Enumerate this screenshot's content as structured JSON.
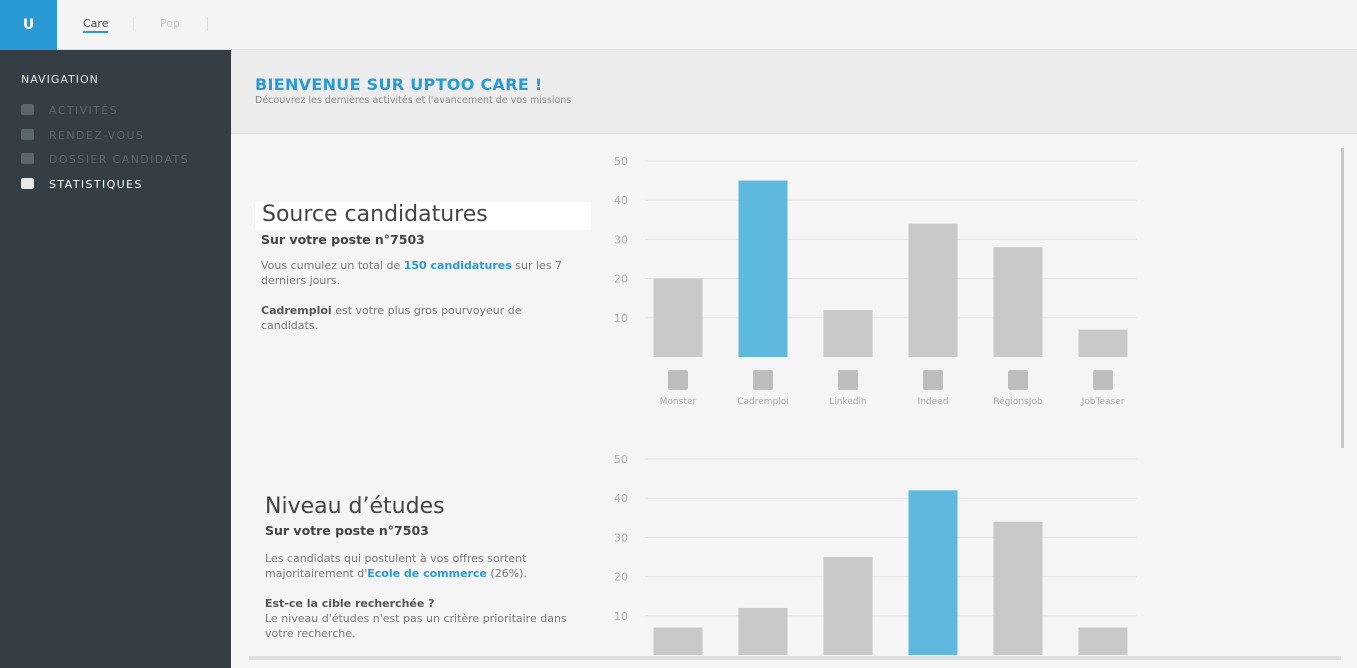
{
  "topbar": {
    "logo": "U",
    "tabs": [
      "Care",
      "Pop"
    ]
  },
  "sidebar": {
    "heading": "NAVIGATION",
    "items": [
      "ACTIVITÉS",
      "RENDEZ-VOUS",
      "DOSSIER CANDIDATS",
      "STATISTIQUES"
    ]
  },
  "header": {
    "title": "BIENVENUE SUR UPTOO CARE !",
    "subtitle": "Découvrez les dernières activités et l'avancement de vos missions"
  },
  "sections": [
    {
      "title": "Source candidatures",
      "subtitle": "Sur votre poste n°7503",
      "paragraph1": [
        "Vous cumulez un total de ",
        "150 candidatures",
        " sur les 7 derniers jours."
      ],
      "paragraph2": [
        "Cadremploi",
        " est votre plus gros pourvoyeur de candidats."
      ],
      "chart": {
        "type": "bar",
        "categories": [
          "Monster",
          "Cadremploi",
          "Linkedin",
          "Indeed",
          "RégionsJob",
          "JobTeaser"
        ],
        "values": [
          20,
          45,
          12,
          34,
          28,
          7
        ],
        "colors": [
          "#c8c8c8",
          "#5fb9de",
          "#c8c8c8",
          "#c8c8c8",
          "#c8c8c8",
          "#c8c8c8"
        ],
        "ylim": [
          0,
          50
        ],
        "yticks": [
          10,
          20,
          30,
          40,
          50
        ],
        "grid": true
      }
    },
    {
      "title": "Niveau d’études",
      "subtitle": "Sur votre poste n°7503",
      "paragraph1": [
        "Les candidats qui postulent à vos offres sortent majoritairement d'",
        "Ecole de commerce",
        " (26%)."
      ],
      "paragraph2": [
        "Est-ce la cible recherchée ?",
        "Le niveau d'études n'est pas un critère prioritaire dans votre recherche."
      ],
      "chart": {
        "type": "bar",
        "categories": [
          null,
          null,
          null,
          null,
          null,
          null
        ],
        "values": [
          7,
          12,
          25,
          42,
          34,
          7
        ],
        "colors": [
          "#c8c8c8",
          "#c8c8c8",
          "#c8c8c8",
          "#5fb9de",
          "#c8c8c8",
          "#c8c8c8"
        ],
        "ylim": [
          0,
          50
        ],
        "yticks": [
          10,
          20,
          30,
          40,
          50
        ],
        "grid": true
      }
    }
  ]
}
